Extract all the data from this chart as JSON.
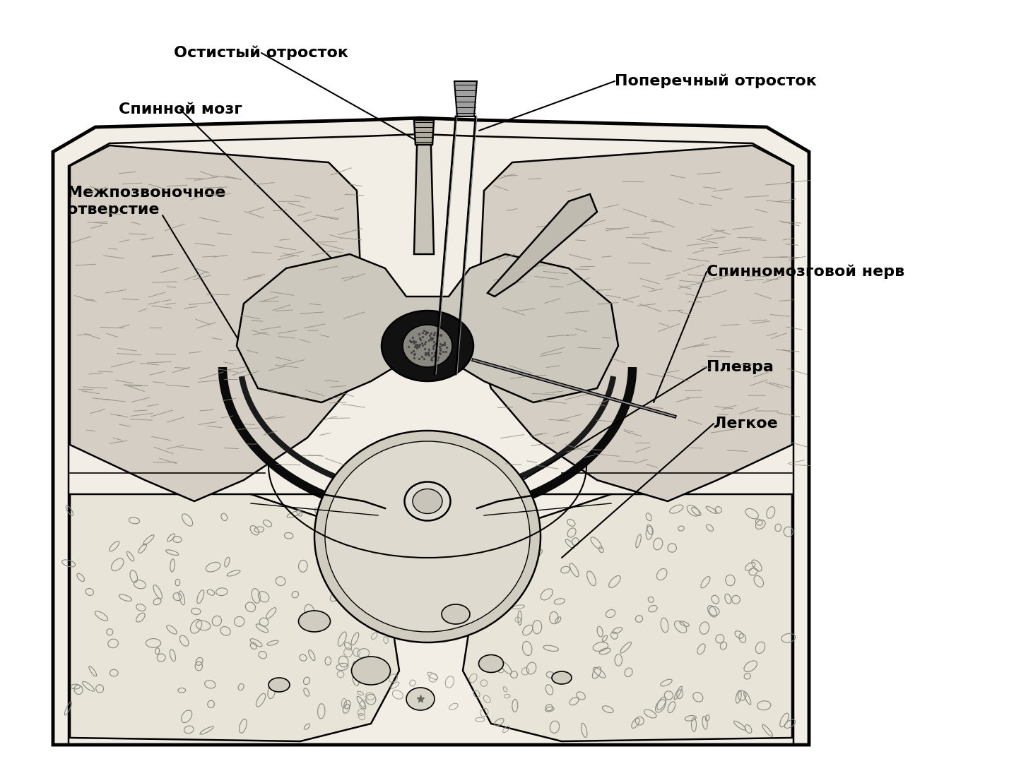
{
  "labels": {
    "spinous_process": "Остистый отросток",
    "spinal_cord": "Спинной мозг",
    "intervertebral_foramen": "Межпозвоночное\nотверстие",
    "transverse_process": "Поперечный отросток",
    "spinal_nerve": "Спинномозговой нерв",
    "pleura": "Плевра",
    "lung": "Легкое"
  },
  "bg_color": "#ffffff",
  "lc": "#000000",
  "skin_color": "#e8e4dc",
  "muscle_color": "#d4cec4",
  "bone_color": "#dbd7cf",
  "dark_color": "#1a1a1a",
  "cord_color": "#b8b4ac",
  "lung_color": "#ede9e0",
  "fat_color": "#ddd9d0"
}
